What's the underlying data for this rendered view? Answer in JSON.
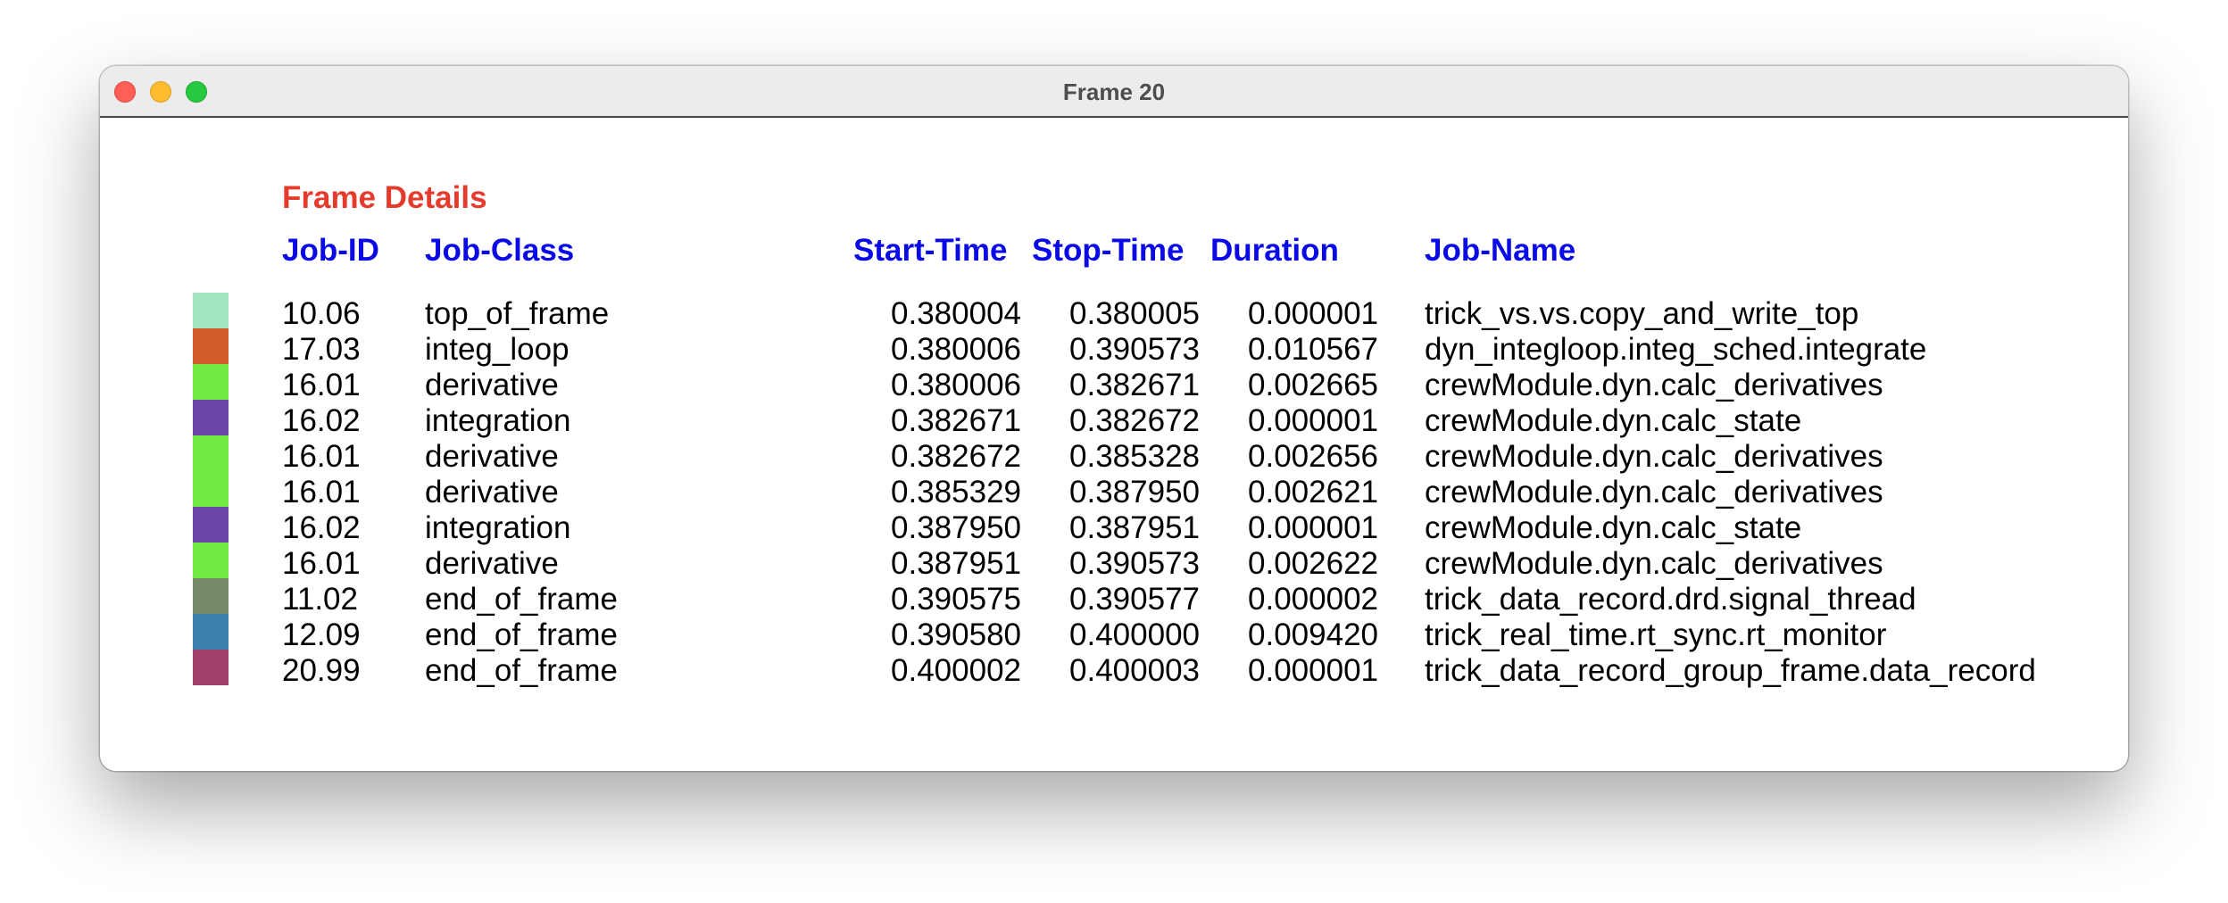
{
  "window": {
    "title": "Frame 20"
  },
  "section_title": "Frame Details",
  "columns": {
    "job_id": "Job-ID",
    "job_class": "Job-Class",
    "start_time": "Start-Time",
    "stop_time": "Stop-Time",
    "duration": "Duration",
    "job_name": "Job-Name"
  },
  "colors": {
    "title_red": "#e53b2c",
    "header_blue": "#0a0ae6"
  },
  "jobs": [
    {
      "color": "#9fe6c0",
      "job_id": "10.06",
      "job_class": "top_of_frame",
      "start": "0.380004",
      "stop": "0.380005",
      "duration": "0.000001",
      "name": "trick_vs.vs.copy_and_write_top"
    },
    {
      "color": "#d05c2c",
      "job_id": "17.03",
      "job_class": "integ_loop",
      "start": "0.380006",
      "stop": "0.390573",
      "duration": "0.010567",
      "name": "dyn_integloop.integ_sched.integrate"
    },
    {
      "color": "#70ec45",
      "job_id": "16.01",
      "job_class": "derivative",
      "start": "0.380006",
      "stop": "0.382671",
      "duration": "0.002665",
      "name": "crewModule.dyn.calc_derivatives"
    },
    {
      "color": "#6a45a6",
      "job_id": "16.02",
      "job_class": "integration",
      "start": "0.382671",
      "stop": "0.382672",
      "duration": "0.000001",
      "name": "crewModule.dyn.calc_state"
    },
    {
      "color": "#70ec45",
      "job_id": "16.01",
      "job_class": "derivative",
      "start": "0.382672",
      "stop": "0.385328",
      "duration": "0.002656",
      "name": "crewModule.dyn.calc_derivatives"
    },
    {
      "color": "#70ec45",
      "job_id": "16.01",
      "job_class": "derivative",
      "start": "0.385329",
      "stop": "0.387950",
      "duration": "0.002621",
      "name": "crewModule.dyn.calc_derivatives"
    },
    {
      "color": "#6a45a6",
      "job_id": "16.02",
      "job_class": "integration",
      "start": "0.387950",
      "stop": "0.387951",
      "duration": "0.000001",
      "name": "crewModule.dyn.calc_state"
    },
    {
      "color": "#70ec45",
      "job_id": "16.01",
      "job_class": "derivative",
      "start": "0.387951",
      "stop": "0.390573",
      "duration": "0.002622",
      "name": "crewModule.dyn.calc_derivatives"
    },
    {
      "color": "#778a6a",
      "job_id": "11.02",
      "job_class": "end_of_frame",
      "start": "0.390575",
      "stop": "0.390577",
      "duration": "0.000002",
      "name": "trick_data_record.drd.signal_thread"
    },
    {
      "color": "#3d82ad",
      "job_id": "12.09",
      "job_class": "end_of_frame",
      "start": "0.390580",
      "stop": "0.400000",
      "duration": "0.009420",
      "name": "trick_real_time.rt_sync.rt_monitor"
    },
    {
      "color": "#a3406a",
      "job_id": "20.99",
      "job_class": "end_of_frame",
      "start": "0.400002",
      "stop": "0.400003",
      "duration": "0.000001",
      "name": "trick_data_record_group_frame.data_record"
    }
  ]
}
